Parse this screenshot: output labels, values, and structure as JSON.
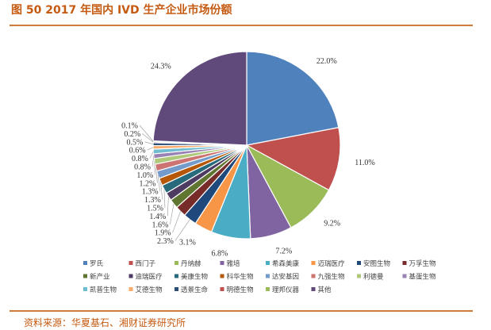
{
  "title": "图 50 2017 年国内 IVD 生产企业市场份额",
  "source": "资料来源：华夏基石、湘财证券研究所",
  "chart_data": {
    "type": "pie",
    "title": "图 50 2017 年国内 IVD 生产企业市场份额",
    "slices": [
      {
        "name": "罗氏",
        "value": 22.0,
        "label": "22.0%",
        "color": "#4f81bd"
      },
      {
        "name": "西门子",
        "value": 11.0,
        "label": "11.0%",
        "color": "#c0504d"
      },
      {
        "name": "丹纳赫",
        "value": 9.2,
        "label": "9.2%",
        "color": "#9bbb59"
      },
      {
        "name": "雅培",
        "value": 7.2,
        "label": "7.2%",
        "color": "#8064a2"
      },
      {
        "name": "希森美康",
        "value": 6.8,
        "label": "6.8%",
        "color": "#4bacc6"
      },
      {
        "name": "迈瑞医疗",
        "value": 3.1,
        "label": "3.1%",
        "color": "#f79646"
      },
      {
        "name": "安图生物",
        "value": 2.3,
        "label": "2.3%",
        "color": "#1f497d"
      },
      {
        "name": "万孚生物",
        "value": 1.9,
        "label": "1.9%",
        "color": "#772c2a"
      },
      {
        "name": "新产业",
        "value": 1.6,
        "label": "1.6%",
        "color": "#5f7530"
      },
      {
        "name": "迪瑞医疗",
        "value": 1.4,
        "label": "1.4%",
        "color": "#4d3b62"
      },
      {
        "name": "美康生物",
        "value": 1.5,
        "label": "1.5%",
        "color": "#276a7c"
      },
      {
        "name": "科华生物",
        "value": 1.3,
        "label": "1.3%",
        "color": "#b65708"
      },
      {
        "name": "达安基因",
        "value": 1.3,
        "label": "1.3%",
        "color": "#729aca"
      },
      {
        "name": "九强生物",
        "value": 1.2,
        "label": "1.2%",
        "color": "#cd7371"
      },
      {
        "name": "利德曼",
        "value": 1.0,
        "label": "1.0%",
        "color": "#afc97a"
      },
      {
        "name": "基蛋生物",
        "value": 0.8,
        "label": "0.8%",
        "color": "#9983b5"
      },
      {
        "name": "凯普生物",
        "value": 0.8,
        "label": "0.8%",
        "color": "#6fbdd1"
      },
      {
        "name": "艾德生物",
        "value": 0.6,
        "label": "0.6%",
        "color": "#f9ab6b"
      },
      {
        "name": "透景生命",
        "value": 0.5,
        "label": "0.5%",
        "color": "#2c4d75"
      },
      {
        "name": "明德生物",
        "value": 0.2,
        "label": "0.2%",
        "color": "#c0504d"
      },
      {
        "name": "理邦仪器",
        "value": 0.1,
        "label": "0.1%",
        "color": "#9bbb59"
      },
      {
        "name": "其他",
        "value": 24.3,
        "label": "24.3%",
        "color": "#604a7b"
      }
    ],
    "legend_position": "bottom"
  }
}
